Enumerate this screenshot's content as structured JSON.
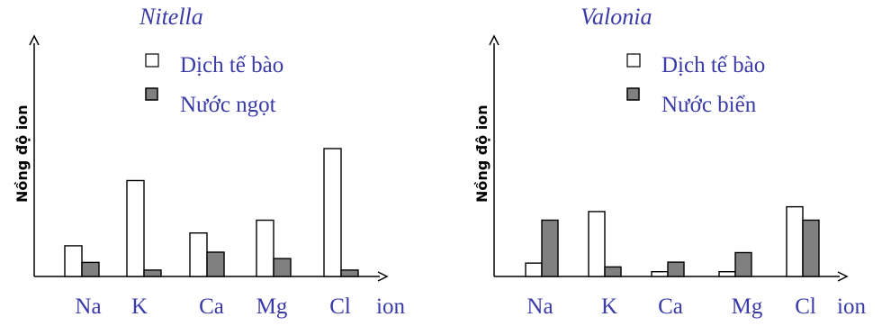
{
  "colors": {
    "text": "#3a3aa8",
    "cell_fill": "#ffffff",
    "water_fill": "#808080",
    "axis": "#000000"
  },
  "chart_data": [
    {
      "type": "bar",
      "title": "Nitella",
      "ylabel": "Nồng độ ion",
      "xlabel": "ion",
      "categories": [
        "Na",
        "K",
        "Ca",
        "Mg",
        "Cl"
      ],
      "ylim": [
        0,
        100
      ],
      "legend_position": "top",
      "series": [
        {
          "name": "Dịch tế bào",
          "fill": "#ffffff",
          "values": [
            24,
            75,
            34,
            44,
            100
          ]
        },
        {
          "name": "Nước ngọt",
          "fill": "#808080",
          "values": [
            11,
            5,
            19,
            14,
            5
          ]
        }
      ]
    },
    {
      "type": "bar",
      "title": "Valonia",
      "ylabel": "Nồng độ ion",
      "xlabel": "ion",
      "categories": [
        "Na",
        "K",
        "Ca",
        "Mg",
        "Cl"
      ],
      "ylim": [
        0,
        100
      ],
      "legend_position": "top",
      "series": [
        {
          "name": "Dịch tế bào",
          "fill": "#ffffff",
          "values": [
            14,
            68,
            5,
            5,
            73
          ]
        },
        {
          "name": "Nước biển",
          "fill": "#808080",
          "values": [
            59,
            10,
            15,
            25,
            59
          ]
        }
      ]
    }
  ]
}
